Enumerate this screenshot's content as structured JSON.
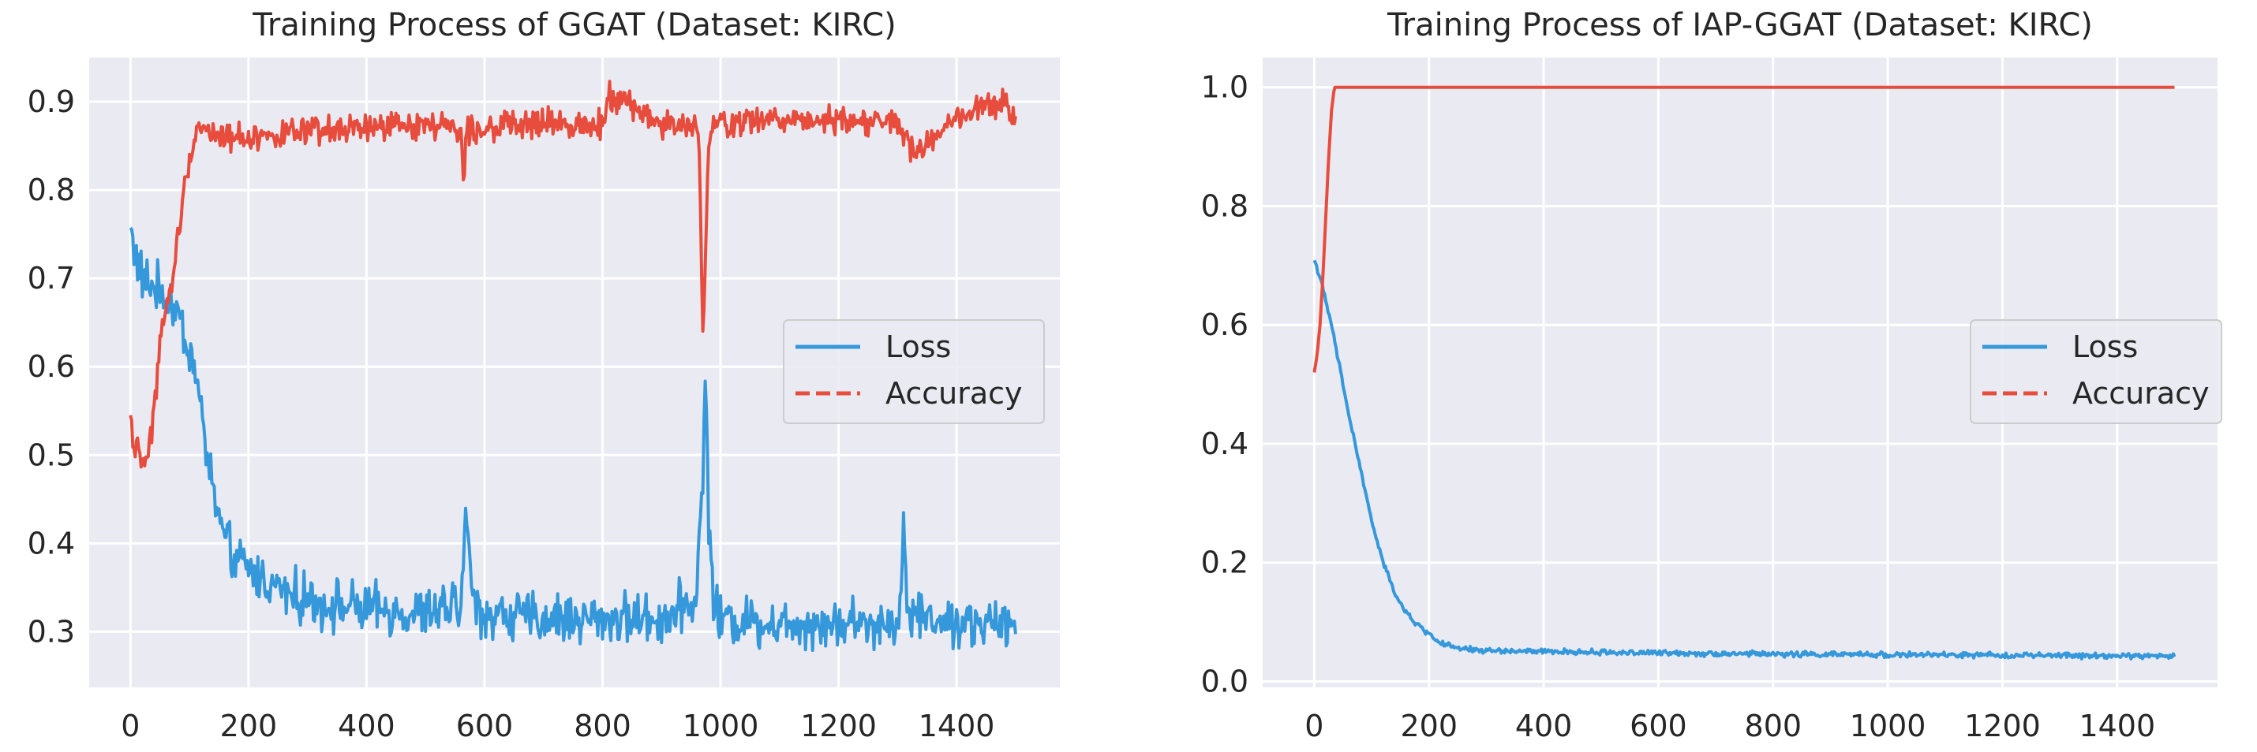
{
  "chart_data": [
    {
      "type": "line",
      "title": "Training Process of GGAT (Dataset: KIRC)",
      "xlabel": "",
      "ylabel": "",
      "xlim": [
        -70,
        1575
      ],
      "ylim": [
        0.237,
        0.95
      ],
      "xticks": [
        0,
        200,
        400,
        600,
        800,
        1000,
        1200,
        1400
      ],
      "xtick_labels": [
        "0",
        "200",
        "400",
        "600",
        "800",
        "1000",
        "1200",
        "1400"
      ],
      "yticks": [
        0.3,
        0.4,
        0.5,
        0.6,
        0.7,
        0.8,
        0.9
      ],
      "ytick_labels": [
        "0.3",
        "0.4",
        "0.5",
        "0.6",
        "0.7",
        "0.8",
        "0.9"
      ],
      "grid": true,
      "legend_position": "center-right",
      "series": [
        {
          "name": "Loss",
          "color": "#3498db",
          "legend_linestyle": "solid",
          "x": [
            0,
            10,
            20,
            40,
            60,
            80,
            100,
            110,
            120,
            130,
            140,
            150,
            160,
            180,
            200,
            250,
            300,
            350,
            400,
            500,
            560,
            570,
            580,
            600,
            700,
            800,
            900,
            960,
            970,
            975,
            980,
            985,
            990,
            1000,
            1100,
            1200,
            1300,
            1310,
            1320,
            1400,
            1500
          ],
          "values": [
            0.76,
            0.72,
            0.7,
            0.69,
            0.68,
            0.66,
            0.62,
            0.59,
            0.55,
            0.5,
            0.46,
            0.43,
            0.4,
            0.38,
            0.37,
            0.35,
            0.335,
            0.33,
            0.325,
            0.32,
            0.33,
            0.44,
            0.33,
            0.32,
            0.315,
            0.315,
            0.315,
            0.34,
            0.49,
            0.585,
            0.43,
            0.36,
            0.33,
            0.315,
            0.31,
            0.31,
            0.31,
            0.41,
            0.32,
            0.31,
            0.305
          ],
          "noise": 0.025
        },
        {
          "name": "Accuracy",
          "color": "#e74c3c",
          "legend_linestyle": "dashed",
          "x": [
            0,
            5,
            10,
            20,
            30,
            40,
            50,
            60,
            70,
            80,
            90,
            100,
            110,
            130,
            150,
            200,
            300,
            400,
            500,
            560,
            565,
            570,
            600,
            700,
            800,
            810,
            900,
            960,
            965,
            970,
            975,
            980,
            985,
            990,
            1000,
            1100,
            1200,
            1300,
            1330,
            1400,
            1480,
            1500
          ],
          "values": [
            0.55,
            0.5,
            0.52,
            0.49,
            0.5,
            0.55,
            0.63,
            0.66,
            0.69,
            0.75,
            0.79,
            0.84,
            0.87,
            0.87,
            0.86,
            0.86,
            0.865,
            0.87,
            0.875,
            0.87,
            0.8,
            0.87,
            0.87,
            0.875,
            0.875,
            0.91,
            0.875,
            0.87,
            0.82,
            0.64,
            0.73,
            0.85,
            0.87,
            0.875,
            0.875,
            0.88,
            0.88,
            0.875,
            0.84,
            0.88,
            0.9,
            0.88
          ],
          "noise": 0.014
        }
      ]
    },
    {
      "type": "line",
      "title": "Training Process of IAP-GGAT (Dataset: KIRC)",
      "xlabel": "",
      "ylabel": "",
      "xlim": [
        -90,
        1575
      ],
      "ylim": [
        -0.01,
        1.05
      ],
      "xticks": [
        0,
        200,
        400,
        600,
        800,
        1000,
        1200,
        1400
      ],
      "xtick_labels": [
        "0",
        "200",
        "400",
        "600",
        "800",
        "1000",
        "1200",
        "1400"
      ],
      "yticks": [
        0.0,
        0.2,
        0.4,
        0.6,
        0.8,
        1.0
      ],
      "ytick_labels": [
        "0.0",
        "0.2",
        "0.4",
        "0.6",
        "0.8",
        "1.0"
      ],
      "grid": true,
      "legend_position": "center-right",
      "series": [
        {
          "name": "Loss",
          "color": "#3498db",
          "legend_linestyle": "solid",
          "x": [
            0,
            10,
            20,
            30,
            40,
            50,
            60,
            80,
            100,
            120,
            140,
            160,
            180,
            200,
            220,
            250,
            300,
            400,
            600,
            800,
            1000,
            1200,
            1400,
            1500
          ],
          "values": [
            0.71,
            0.68,
            0.64,
            0.6,
            0.55,
            0.5,
            0.45,
            0.36,
            0.27,
            0.2,
            0.15,
            0.115,
            0.095,
            0.08,
            0.065,
            0.055,
            0.052,
            0.05,
            0.048,
            0.046,
            0.045,
            0.044,
            0.043,
            0.043
          ],
          "noise": 0.004
        },
        {
          "name": "Accuracy",
          "color": "#e74c3c",
          "legend_linestyle": "dashed",
          "x": [
            0,
            5,
            10,
            15,
            20,
            25,
            30,
            35,
            40,
            100,
            200,
            400,
            600,
            800,
            1000,
            1200,
            1400,
            1500
          ],
          "values": [
            0.52,
            0.55,
            0.6,
            0.68,
            0.78,
            0.88,
            0.96,
            1.0,
            1.0,
            1.0,
            1.0,
            1.0,
            1.0,
            1.0,
            1.0,
            1.0,
            1.0,
            1.0
          ],
          "noise": 0.0
        }
      ]
    }
  ]
}
